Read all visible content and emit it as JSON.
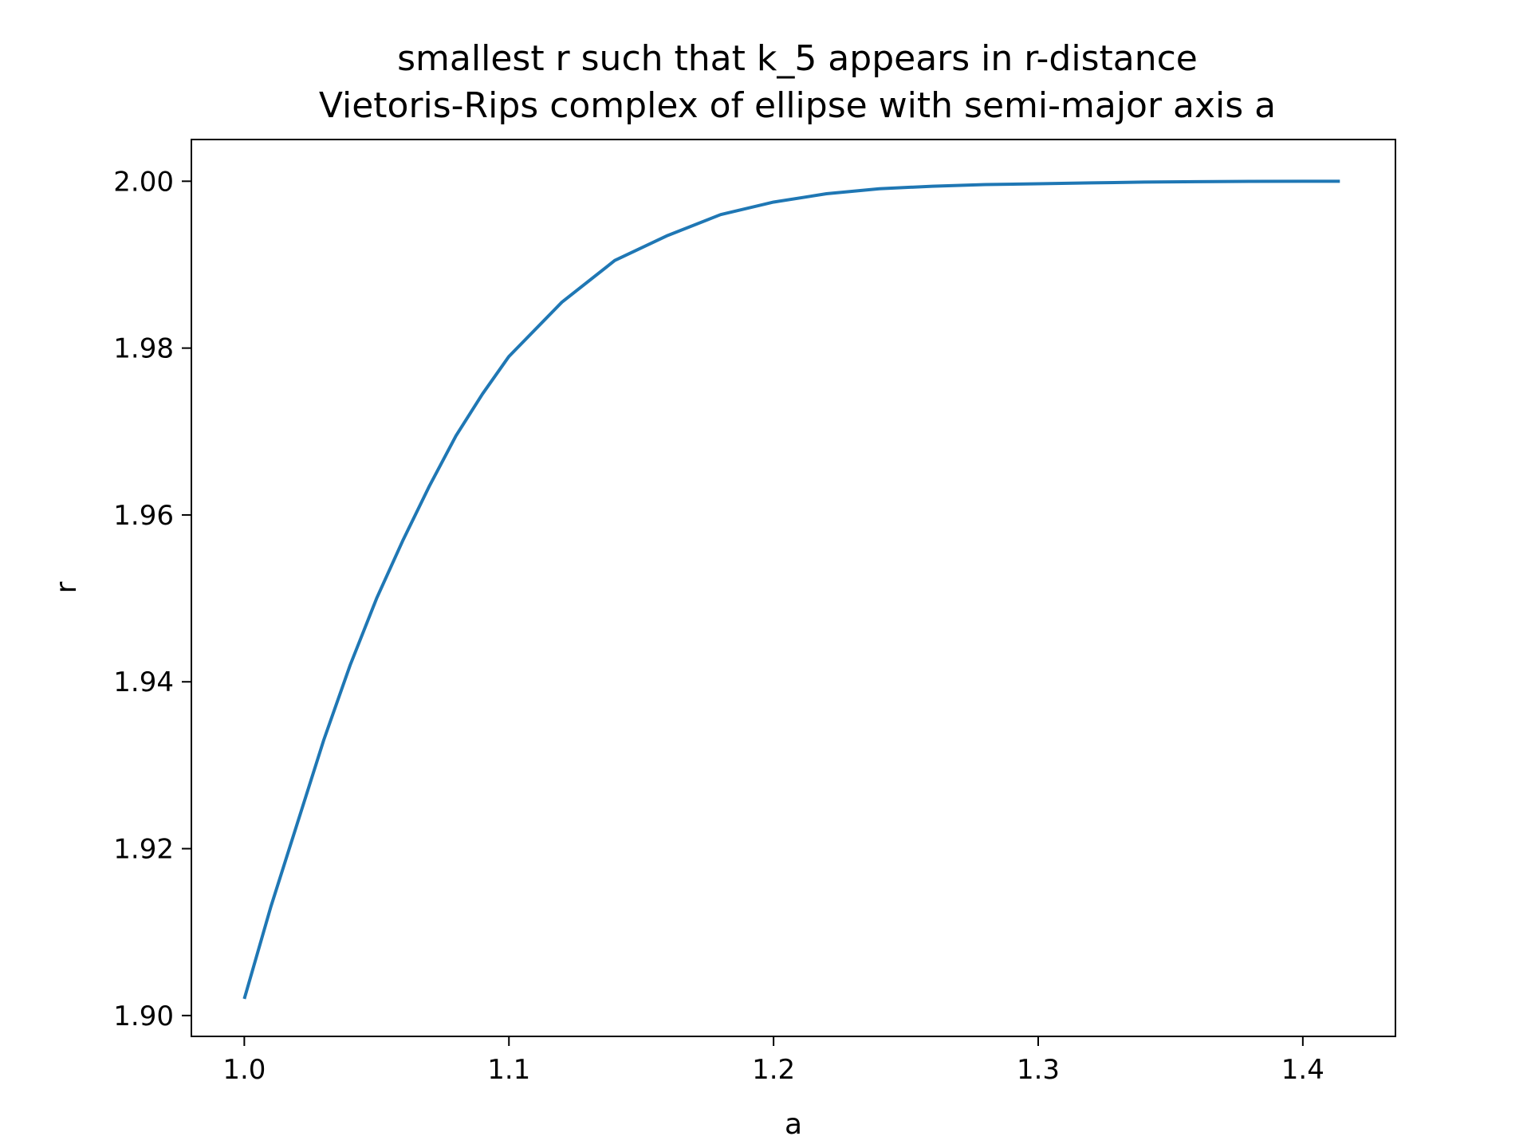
{
  "chart_data": {
    "type": "line",
    "title": "smallest r such that k_5 appears in r-distance",
    "subtitle": "Vietoris-Rips complex of ellipse with semi-major axis a",
    "xlabel": "a",
    "ylabel": "r",
    "xlim": [
      0.98,
      1.435
    ],
    "ylim": [
      1.8975,
      2.005
    ],
    "xticks": [
      1.0,
      1.1,
      1.2,
      1.3,
      1.4
    ],
    "xtick_labels": [
      "1.0",
      "1.1",
      "1.2",
      "1.3",
      "1.4"
    ],
    "yticks": [
      1.9,
      1.92,
      1.94,
      1.96,
      1.98,
      2.0
    ],
    "ytick_labels": [
      "1.90",
      "1.92",
      "1.94",
      "1.96",
      "1.98",
      "2.00"
    ],
    "grid": false,
    "series": [
      {
        "color": "#1f77b4",
        "x": [
          1.0,
          1.01,
          1.02,
          1.03,
          1.04,
          1.05,
          1.06,
          1.07,
          1.08,
          1.09,
          1.1,
          1.12,
          1.14,
          1.16,
          1.18,
          1.2,
          1.22,
          1.24,
          1.26,
          1.28,
          1.3,
          1.32,
          1.34,
          1.36,
          1.38,
          1.4,
          1.414
        ],
        "y": [
          1.902,
          1.913,
          1.923,
          1.933,
          1.942,
          1.95,
          1.957,
          1.9635,
          1.9695,
          1.9745,
          1.979,
          1.9855,
          1.9905,
          1.9935,
          1.996,
          1.9975,
          1.9985,
          1.9991,
          1.9994,
          1.9996,
          1.9997,
          1.9998,
          1.9999,
          1.99995,
          1.99998,
          2.0,
          2.0
        ]
      }
    ]
  }
}
